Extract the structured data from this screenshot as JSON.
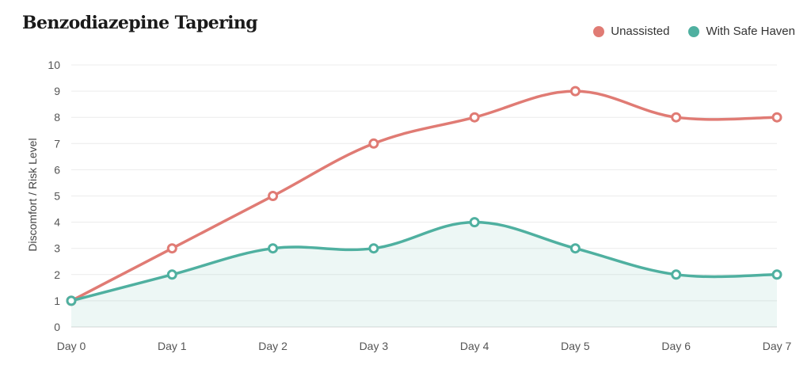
{
  "chart_data": {
    "type": "line",
    "title": "Benzodiazepine Tapering",
    "xlabel": "",
    "ylabel": "Discomfort / Risk Level",
    "categories": [
      "Day 0",
      "Day 1",
      "Day 2",
      "Day 3",
      "Day 4",
      "Day 5",
      "Day 6",
      "Day 7"
    ],
    "ylim": [
      0,
      10
    ],
    "yticks": [
      0,
      1,
      2,
      3,
      4,
      5,
      6,
      7,
      8,
      9,
      10
    ],
    "grid": true,
    "legend_position": "top-right",
    "series": [
      {
        "name": "Unassisted",
        "color": "#e07b74",
        "values": [
          1,
          3,
          5,
          7,
          8,
          9,
          8,
          8
        ],
        "fill": false
      },
      {
        "name": "With Safe Haven",
        "color": "#4fb0a0",
        "values": [
          1,
          2,
          3,
          3,
          4,
          3,
          2,
          2
        ],
        "fill": true
      }
    ]
  }
}
